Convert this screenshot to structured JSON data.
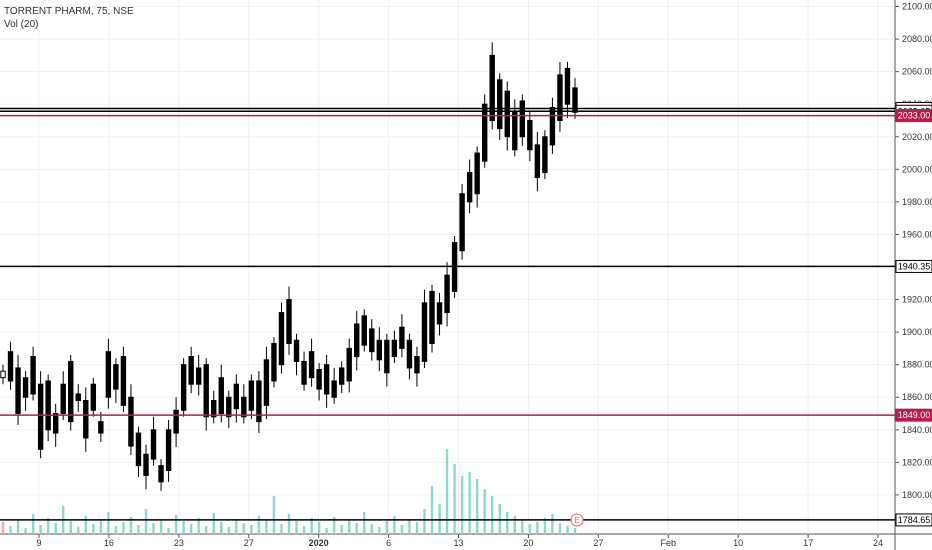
{
  "chart_data": {
    "type": "candlestick",
    "title": "TORRENT PHARM, 75, NSE",
    "volume_label": "Vol (20)",
    "ylim": [
      1776,
      2104
    ],
    "y_ticks": [
      1800,
      1820,
      1840,
      1860,
      1880,
      1900,
      1920,
      1940,
      1960,
      1980,
      2000,
      2020,
      2040,
      2060,
      2080,
      2100
    ],
    "x_ticks": [
      "9",
      "16",
      "23",
      "27",
      "2020",
      "6",
      "13",
      "20",
      "27",
      "Feb",
      "10",
      "17",
      "24"
    ],
    "grid": true,
    "horizontal_lines": [
      {
        "value": 2037.35,
        "label": "2037.35",
        "color": "#000000"
      },
      {
        "value": 2035.65,
        "label": "2035.65",
        "color": "#000000"
      },
      {
        "value": 2033.0,
        "label": "2033.00",
        "color": "#b71c4c"
      },
      {
        "value": 1940.35,
        "label": "1940.35",
        "color": "#000000"
      },
      {
        "value": 1849.0,
        "label": "1849.00",
        "color": "#b71c4c"
      },
      {
        "value": 1784.65,
        "label": "1784.65",
        "color": "#000000"
      }
    ],
    "earnings_marker": "E",
    "price_path": [
      [
        1872,
        1876
      ],
      [
        1888,
        1870
      ],
      [
        1878,
        1850
      ],
      [
        1872,
        1860
      ],
      [
        1885,
        1862
      ],
      [
        1868,
        1828
      ],
      [
        1870,
        1840
      ],
      [
        1850,
        1838
      ],
      [
        1868,
        1850
      ],
      [
        1882,
        1845
      ],
      [
        1862,
        1858
      ],
      [
        1858,
        1835
      ],
      [
        1868,
        1852
      ],
      [
        1845,
        1838
      ],
      [
        1888,
        1860
      ],
      [
        1880,
        1865
      ],
      [
        1885,
        1855
      ],
      [
        1860,
        1830
      ],
      [
        1838,
        1818
      ],
      [
        1825,
        1812
      ],
      [
        1840,
        1822
      ],
      [
        1818,
        1808
      ],
      [
        1840,
        1815
      ],
      [
        1852,
        1838
      ],
      [
        1880,
        1852
      ],
      [
        1885,
        1868
      ],
      [
        1878,
        1868
      ],
      [
        1880,
        1848
      ],
      [
        1858,
        1848
      ],
      [
        1872,
        1850
      ],
      [
        1860,
        1848
      ],
      [
        1868,
        1853
      ],
      [
        1860,
        1848
      ],
      [
        1870,
        1852
      ],
      [
        1870,
        1845
      ],
      [
        1883,
        1855
      ],
      [
        1893,
        1870
      ],
      [
        1912,
        1880
      ],
      [
        1920,
        1893
      ],
      [
        1895,
        1882
      ],
      [
        1882,
        1868
      ],
      [
        1888,
        1872
      ],
      [
        1877,
        1865
      ],
      [
        1880,
        1862
      ],
      [
        1870,
        1860
      ],
      [
        1878,
        1868
      ],
      [
        1890,
        1870
      ],
      [
        1905,
        1885
      ],
      [
        1910,
        1892
      ],
      [
        1902,
        1888
      ],
      [
        1895,
        1883
      ],
      [
        1895,
        1875
      ],
      [
        1895,
        1885
      ],
      [
        1903,
        1890
      ],
      [
        1895,
        1878
      ],
      [
        1885,
        1875
      ],
      [
        1918,
        1882
      ],
      [
        1925,
        1893
      ],
      [
        1918,
        1905
      ],
      [
        1935,
        1912
      ],
      [
        1955,
        1925
      ],
      [
        1985,
        1950
      ],
      [
        1998,
        1980
      ],
      [
        2010,
        1985
      ],
      [
        2040,
        2005
      ],
      [
        2070,
        2030
      ],
      [
        2055,
        2025
      ],
      [
        2048,
        2020
      ],
      [
        2035,
        2012
      ],
      [
        2042,
        2020
      ],
      [
        2030,
        2012
      ],
      [
        2015,
        1995
      ],
      [
        2020,
        1998
      ],
      [
        2038,
        2015
      ],
      [
        2058,
        2030
      ],
      [
        2062,
        2040
      ],
      [
        2050,
        2035
      ]
    ],
    "volume_heights": [
      12,
      8,
      14,
      6,
      20,
      9,
      16,
      11,
      28,
      13,
      7,
      18,
      10,
      15,
      22,
      8,
      12,
      17,
      9,
      25,
      11,
      14,
      6,
      19,
      13,
      10,
      16,
      8,
      21,
      12,
      7,
      15,
      11,
      9,
      18,
      14,
      38,
      10,
      20,
      13,
      8,
      16,
      12,
      6,
      17,
      9,
      14,
      11,
      22,
      10,
      7,
      13,
      18,
      9,
      15,
      12,
      25,
      48,
      30,
      85,
      70,
      58,
      62,
      55,
      45,
      38,
      30,
      22,
      18,
      14,
      10,
      12,
      16,
      20,
      11,
      8,
      6
    ]
  }
}
